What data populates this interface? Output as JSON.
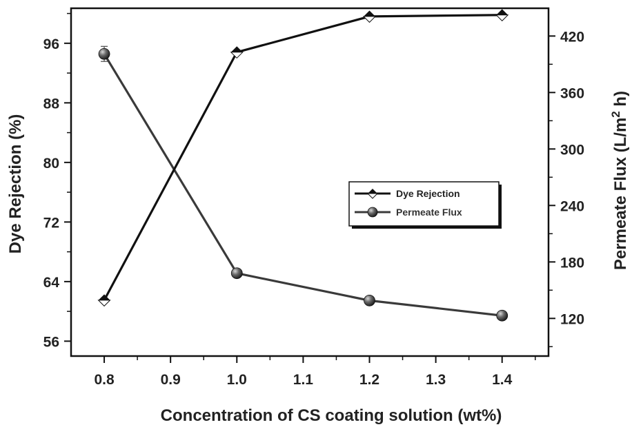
{
  "chart_data": {
    "type": "line",
    "x": [
      0.8,
      1.0,
      1.2,
      1.4
    ],
    "xlabel": "Concentration of CS coating solution (wt%)",
    "xlim": [
      0.75,
      1.47
    ],
    "xticks": [
      "0.8",
      "0.9",
      "1.0",
      "1.1",
      "1.2",
      "1.3",
      "1.4"
    ],
    "ylabel_left": "Dye Rejection (%)",
    "ylim_left": [
      54,
      100.7
    ],
    "yticks_left": [
      "56",
      "64",
      "72",
      "80",
      "88",
      "96"
    ],
    "ylabel_right": "Permeate Flux (L/m² h)",
    "ylim_right": [
      80,
      449.5
    ],
    "yticks_right": [
      "120",
      "180",
      "240",
      "300",
      "360",
      "420"
    ],
    "series": [
      {
        "name": "Dye Rejection",
        "axis": "left",
        "marker": "diamond",
        "color": "#111111",
        "values": [
          61.5,
          94.8,
          99.6,
          99.8
        ]
      },
      {
        "name": "Permeate Flux",
        "axis": "right",
        "marker": "sphere",
        "color": "#3a3a3a",
        "values": [
          401,
          168,
          139,
          123
        ],
        "error": [
          8,
          0,
          0,
          0
        ]
      }
    ],
    "legend": "center-right",
    "grid": false
  }
}
